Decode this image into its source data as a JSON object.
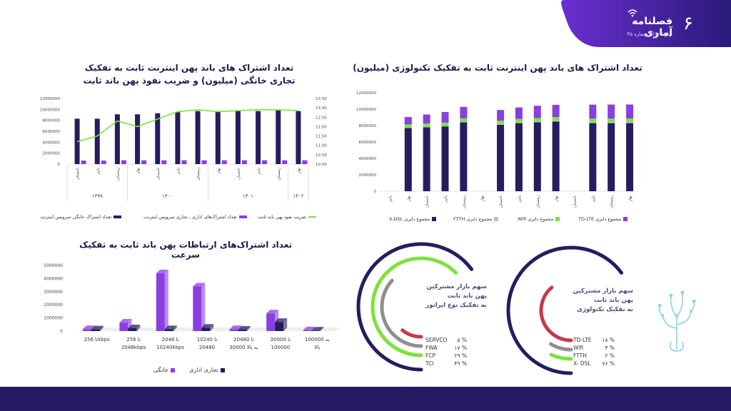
{
  "brand": {
    "title": "فصلنامه آماری",
    "subtitle": "بهار ۱۴۰۲ / شماره ۴۵",
    "page_number": "۶",
    "colors": {
      "primary": "#6a2fd0",
      "dark": "#231a63"
    }
  },
  "chart_data": [
    {
      "type": "bar",
      "stacked": true,
      "title": "تعداد اشتراک های باند پهن اینترنت ثابت به تفکیک تکنولوژی (میلیون)",
      "yticks": [
        "0",
        "2000000",
        "4000000",
        "6000000",
        "8000000",
        "10000000",
        "12000000"
      ],
      "ylim": [
        0,
        12000000
      ],
      "categories": [
        "پاییز",
        "بهار",
        "تابستان",
        "پاییز",
        "زمستان",
        "بهار",
        "تابستان",
        "پاییز",
        "زمستان",
        "بهار",
        "تابستان",
        "پاییز",
        "زمستان",
        "بهار"
      ],
      "series": [
        {
          "name": "X-DSL",
          "color": "#241d5e",
          "values": [
            0,
            7700000,
            7800000,
            7900000,
            8400000,
            0,
            8100000,
            8300000,
            8400000,
            8500000,
            0,
            8300000,
            8300000,
            8300000
          ]
        },
        {
          "name": "FTTH",
          "color": "#bdbdbd",
          "values": [
            0,
            50000,
            50000,
            60000,
            80000,
            0,
            100000,
            110000,
            120000,
            130000,
            0,
            150000,
            160000,
            170000
          ]
        },
        {
          "name": "Wifi",
          "color": "#7be33a",
          "values": [
            0,
            400000,
            400000,
            400000,
            400000,
            0,
            400000,
            400000,
            400000,
            400000,
            0,
            400000,
            400000,
            400000
          ]
        },
        {
          "name": "TD-LTE",
          "color": "#8a3fe0",
          "values": [
            0,
            900000,
            1100000,
            1300000,
            1400000,
            0,
            1300000,
            1400000,
            1500000,
            1500000,
            0,
            1700000,
            1700000,
            1700000
          ]
        }
      ],
      "legend": [
        "مجموع دایری X-DSL",
        "مجموع دایری FTTH",
        "مجموع دایری Wifi",
        "مجموع دایری TD-LTE"
      ]
    },
    {
      "type": "bar+line",
      "title": "تعداد اشتراک های باند پهن اینترنت ثابت به تفکیک تجاری خانگی (میلیون) و ضریب نفوذ پهن باند ثابت",
      "yticks_left": [
        "0",
        "2000000",
        "4000000",
        "6000000",
        "8000000",
        "10000000",
        "12000000"
      ],
      "yticks_right": [
        "10.00",
        "10.50",
        "11.00",
        "11.50",
        "12.00",
        "12.50",
        "13.00",
        "13.50"
      ],
      "ylim_left": [
        0,
        12000000
      ],
      "ylim_right": [
        10,
        13.5
      ],
      "categories": [
        "تابستان",
        "پاییز",
        "زمستان",
        "بهار",
        "تابستان",
        "پاییز",
        "زمستان",
        "بهار",
        "تابستان",
        "پاییز",
        "زمستان",
        "بهار"
      ],
      "groups": [
        {
          "label": "۱۳۹۹",
          "count": 3
        },
        {
          "label": "۱۴۰۰",
          "count": 4
        },
        {
          "label": "۱۴۰۱",
          "count": 4
        },
        {
          "label": "۱۴۰۲",
          "count": 1
        }
      ],
      "series": [
        {
          "name": "تعداد اشتراک خانگی سرویس اینترنت",
          "color": "#241d5e",
          "values": [
            8300000,
            8300000,
            9100000,
            9100000,
            9300000,
            9500000,
            9700000,
            9700000,
            9700000,
            9700000,
            9800000,
            9700000
          ]
        },
        {
          "name": "تعداد اشتراک‌های اداری ـ تجاری سرویس اینترنت",
          "color": "#8a3fe0",
          "values": [
            650000,
            650000,
            700000,
            700000,
            700000,
            700000,
            700000,
            700000,
            700000,
            700000,
            700000,
            700000
          ]
        },
        {
          "name": "ضریب نفوذ پهن باند ثابت",
          "color": "#7be33a",
          "values": [
            11.2,
            11.5,
            12.3,
            12.0,
            12.4,
            12.8,
            12.9,
            12.8,
            12.85,
            12.9,
            12.9,
            12.85
          ]
        }
      ]
    },
    {
      "type": "bar",
      "style": "3d",
      "title": "تعداد اشتراک‌های ارتباطات پهن باند ثابت به تفکیک سرعت",
      "yticks": [
        "0",
        "1000000",
        "2000000",
        "3000000",
        "4000000",
        "5000000"
      ],
      "ylim": [
        0,
        5000000
      ],
      "categories": [
        "تا 256kbps",
        "256 تا 2048kbps",
        "2048 تا 10240kbps",
        "10240 تا 20480",
        "20480 تا 30000 به بالا",
        "30000 تا 100000",
        "100000 به بالا"
      ],
      "series": [
        {
          "name": "خانگی",
          "color": "#8a3fe0",
          "values": [
            150000,
            650000,
            4400000,
            3400000,
            150000,
            1350000,
            60000
          ]
        },
        {
          "name": "تجاری اداری",
          "color": "#241d5e",
          "values": [
            130000,
            220000,
            150000,
            260000,
            110000,
            700000,
            40000
          ]
        }
      ]
    },
    {
      "type": "pie",
      "title": "سهم بازار مشترکین پهن باند ثابت به تفکیک تکنولوژی",
      "labels": [
        "TD-LTE",
        "Wifi",
        "FTTH",
        "X- DSL"
      ],
      "values": [
        18,
        4,
        2,
        76
      ],
      "value_labels": [
        "۱۸ %",
        "۴ %",
        "۲ %",
        "۷۶ %"
      ],
      "colors": [
        "#c53a4a",
        "#8f8f8f",
        "#7be33a",
        "#241d5e"
      ]
    },
    {
      "type": "pie",
      "title": "سهم بازار مشترکین پهن باند ثابت به تفکیک نوع اپراتور",
      "labels": [
        "SERVCO",
        "FWA",
        "FCP",
        "TCI"
      ],
      "values": [
        5,
        17,
        29,
        49
      ],
      "value_labels": [
        "۵ %",
        "۱۷ %",
        "۲۹ %",
        "۴۹ %"
      ],
      "colors": [
        "#c53a4a",
        "#8f8f8f",
        "#7be33a",
        "#241d5e"
      ]
    }
  ],
  "donut_tech": {
    "title_l1": "سهم بازار مشترکین",
    "title_l2": "پهن باند ثابت",
    "title_l3": "به تفکیک تکنولوژی"
  },
  "donut_oper": {
    "title_l1": "سهم بازار مشترکین",
    "title_l2": "پهن باند ثابت",
    "title_l3": "به تفکیک نوع اپراتور"
  }
}
